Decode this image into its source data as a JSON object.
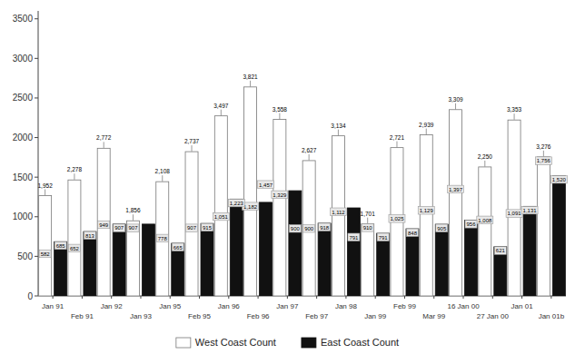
{
  "chart_data": {
    "type": "bar",
    "categories": [
      "Jan 91",
      "Feb 91",
      "Jan 92",
      "Jan 93",
      "Jan 95",
      "Feb 95",
      "Jan 96",
      "Feb 96",
      "Jan 97",
      "Feb 97",
      "Jan 98",
      "Jan 99",
      "Feb 99",
      "Mar 99",
      "16 Jan 00",
      "27 Jan 00",
      "Jan 01",
      "Jan 01b"
    ],
    "series": [
      {
        "name": "West Coast Count",
        "color": "#ffffff",
        "values": [
          1267,
          1465,
          1865,
          949,
          1443,
          1822,
          2274,
          2639,
          2229,
          1709,
          2022,
          910,
          1873,
          2034,
          2353,
          1629,
          2222,
          1756
        ],
        "box_values": [
          582,
          652,
          949,
          907,
          778,
          907,
          1051,
          1182,
          1329,
          900,
          1112,
          910,
          1025,
          1129,
          1397,
          1008,
          1091,
          1756
        ],
        "box_labels": [
          "582",
          "652",
          "949",
          "907",
          "778",
          "907",
          "1,051",
          "1,182",
          "1,329",
          "900",
          "1,112",
          "910",
          "1,025",
          "1,129",
          "1,397",
          "1,008",
          "1,091",
          "1,756"
        ]
      },
      {
        "name": "East Coast Count",
        "color": "#111111",
        "values": [
          685,
          813,
          907,
          907,
          665,
          915,
          1223,
          1182,
          1329,
          918,
          1112,
          791,
          848,
          905,
          956,
          621,
          1131,
          1520
        ],
        "box_values": [
          685,
          813,
          907,
          null,
          665,
          915,
          1223,
          1457,
          900,
          918,
          791,
          791,
          848,
          905,
          956,
          621,
          1131,
          1520
        ],
        "box_labels": [
          "685",
          "813",
          "907",
          null,
          "665",
          "915",
          "1,223",
          "1,457",
          "900",
          "918",
          "791",
          "791",
          "848",
          "905",
          "956",
          "621",
          "1,131",
          "1,520"
        ]
      }
    ],
    "totals": [
      1952,
      2278,
      2772,
      1856,
      2108,
      2737,
      3497,
      3821,
      3558,
      2627,
      3134,
      1701,
      2721,
      2939,
      3309,
      2250,
      3353,
      3276
    ],
    "total_labels": [
      "1,952",
      "2,278",
      "2,772",
      "1,856",
      "2,108",
      "2,737",
      "3,497",
      "3,821",
      "3,558",
      "2,627",
      "3,134",
      "1,701",
      "2,721",
      "2,939",
      "3,309",
      "2,250",
      "3,353",
      "3,276"
    ],
    "ylim": [
      0,
      3600
    ],
    "yticks": [
      0,
      500,
      1000,
      1500,
      2000,
      2500,
      3000,
      3500
    ],
    "grid": false,
    "legend": "bottom"
  }
}
